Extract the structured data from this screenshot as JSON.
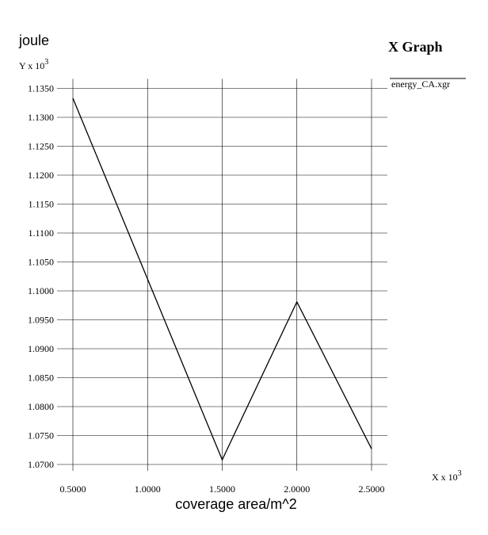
{
  "chart_data": {
    "type": "line",
    "title": "X Graph",
    "ylabel": "joule",
    "xlabel": "coverage area/m^2",
    "y_multiplier_label": {
      "base": "Y x 10",
      "exp": "3"
    },
    "x_multiplier_label": {
      "base": "X x 10",
      "exp": "3"
    },
    "legend_position": "top-right",
    "grid": true,
    "xlim": [
      0.5,
      2.5
    ],
    "ylim": [
      1.07,
      1.135
    ],
    "x_ticks": [
      0.5,
      1.0,
      1.5,
      2.0,
      2.5
    ],
    "x_tick_labels": [
      "0.5000",
      "1.0000",
      "1.5000",
      "2.0000",
      "2.5000"
    ],
    "y_ticks": [
      1.07,
      1.075,
      1.08,
      1.085,
      1.09,
      1.095,
      1.1,
      1.105,
      1.11,
      1.115,
      1.12,
      1.125,
      1.13,
      1.135
    ],
    "y_tick_labels": [
      "1.0700",
      "1.0750",
      "1.0800",
      "1.0850",
      "1.0900",
      "1.0950",
      "1.1000",
      "1.1050",
      "1.1100",
      "1.1150",
      "1.1200",
      "1.1250",
      "1.1300",
      "1.1350"
    ],
    "series": [
      {
        "name": "energy_CA.xgr",
        "color": "#000000",
        "x": [
          0.5,
          1.5,
          2.0,
          2.5
        ],
        "y": [
          1.1333,
          1.0708,
          1.0981,
          1.0727
        ]
      }
    ]
  }
}
